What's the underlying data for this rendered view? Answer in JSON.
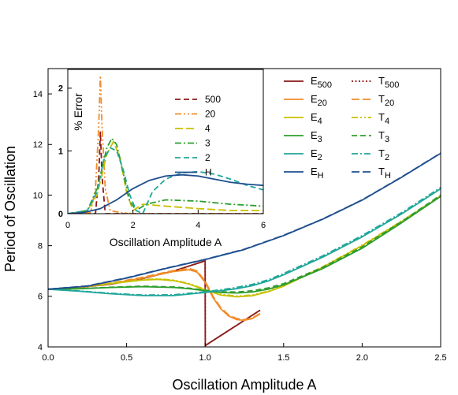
{
  "chart_data": [
    {
      "id": "main",
      "type": "line",
      "title": "",
      "xlabel": "Oscillation Amplitude A",
      "ylabel": "Period of Oscillation",
      "xlim": [
        0,
        2.5
      ],
      "ylim": [
        4,
        15
      ],
      "xticks": [
        "0.0",
        "0.5",
        "1.0",
        "1.5",
        "2.0",
        "2.5"
      ],
      "xtick_values": [
        0,
        0.5,
        1.0,
        1.5,
        2.0,
        2.5
      ],
      "yticks": [
        "4",
        "6",
        "8",
        "10",
        "12",
        "14"
      ],
      "ytick_values": [
        4,
        6,
        8,
        10,
        12,
        14
      ],
      "grid": false,
      "legend": {
        "placement": "top-right",
        "columns": 2
      },
      "series": [
        {
          "name": "E500",
          "label_base": "E",
          "label_sub": "500",
          "legend_col": 0,
          "legend_row": 0,
          "color": "#8b1a1a",
          "dash": "solid",
          "x": [
            0,
            0.2,
            0.4,
            0.6,
            0.8,
            0.9,
            0.95,
            1.0,
            1.001,
            1.05,
            1.1,
            1.2,
            1.3,
            1.35
          ],
          "y": [
            6.28,
            6.35,
            6.48,
            6.7,
            7.0,
            7.2,
            7.3,
            7.4,
            4.05,
            4.25,
            4.45,
            4.85,
            5.25,
            5.45
          ]
        },
        {
          "name": "T500",
          "label_base": "T",
          "label_sub": "500",
          "legend_col": 1,
          "legend_row": 0,
          "color": "#8b1a1a",
          "dash": "dot",
          "x": [
            0,
            0.2,
            0.4,
            0.6,
            0.8,
            0.9,
            0.95,
            1.0,
            1.001,
            1.05,
            1.1,
            1.2,
            1.3,
            1.35
          ],
          "y": [
            6.28,
            6.35,
            6.48,
            6.7,
            7.0,
            7.2,
            7.3,
            7.4,
            4.05,
            4.25,
            4.45,
            4.85,
            5.25,
            5.45
          ]
        },
        {
          "name": "E20",
          "label_base": "E",
          "label_sub": "20",
          "legend_col": 0,
          "legend_row": 1,
          "color": "#f28c28",
          "dash": "solid",
          "x": [
            0,
            0.2,
            0.4,
            0.6,
            0.8,
            0.9,
            0.95,
            1.0,
            1.05,
            1.1,
            1.15,
            1.2,
            1.25,
            1.3,
            1.35
          ],
          "y": [
            6.28,
            6.35,
            6.5,
            6.72,
            6.98,
            7.05,
            6.95,
            6.55,
            5.95,
            5.5,
            5.22,
            5.08,
            5.05,
            5.12,
            5.3
          ]
        },
        {
          "name": "T20",
          "label_base": "T",
          "label_sub": "20",
          "legend_col": 1,
          "legend_row": 1,
          "color": "#f28c28",
          "dash": "longdash",
          "x": [
            0,
            0.2,
            0.4,
            0.6,
            0.8,
            0.9,
            0.95,
            1.0,
            1.05,
            1.1,
            1.15,
            1.2,
            1.25,
            1.3,
            1.35
          ],
          "y": [
            6.28,
            6.36,
            6.52,
            6.75,
            7.02,
            7.1,
            7.0,
            6.6,
            6.0,
            5.55,
            5.26,
            5.12,
            5.08,
            5.15,
            5.32
          ]
        },
        {
          "name": "E4",
          "label_base": "E",
          "label_sub": "4",
          "legend_col": 0,
          "legend_row": 2,
          "color": "#c8c000",
          "dash": "solid",
          "x": [
            0,
            0.2,
            0.4,
            0.6,
            0.7,
            0.8,
            0.9,
            1.0,
            1.1,
            1.2,
            1.3,
            1.4,
            1.5,
            1.75,
            2.0,
            2.25,
            2.5
          ],
          "y": [
            6.28,
            6.36,
            6.5,
            6.64,
            6.67,
            6.62,
            6.48,
            6.25,
            6.05,
            5.98,
            6.02,
            6.18,
            6.4,
            7.15,
            8.0,
            8.95,
            9.95
          ]
        },
        {
          "name": "T4",
          "label_base": "T",
          "label_sub": "4",
          "legend_col": 1,
          "legend_row": 2,
          "color": "#c8c000",
          "dash": "dashdotdot",
          "x": [
            0,
            0.2,
            0.4,
            0.6,
            0.7,
            0.8,
            0.9,
            1.0,
            1.1,
            1.2,
            1.3,
            1.4,
            1.5,
            1.75,
            2.0,
            2.25,
            2.5
          ],
          "y": [
            6.28,
            6.36,
            6.52,
            6.66,
            6.69,
            6.64,
            6.5,
            6.27,
            6.08,
            6.01,
            6.05,
            6.2,
            6.42,
            7.17,
            8.02,
            8.97,
            9.97
          ]
        },
        {
          "name": "E3",
          "label_base": "E",
          "label_sub": "3",
          "legend_col": 0,
          "legend_row": 3,
          "color": "#2e9e2e",
          "dash": "solid",
          "x": [
            0,
            0.2,
            0.4,
            0.6,
            0.8,
            0.9,
            1.0,
            1.1,
            1.2,
            1.3,
            1.4,
            1.5,
            1.75,
            2.0,
            2.25,
            2.5
          ],
          "y": [
            6.28,
            6.3,
            6.35,
            6.38,
            6.35,
            6.3,
            6.22,
            6.15,
            6.13,
            6.17,
            6.28,
            6.45,
            7.1,
            7.9,
            8.9,
            9.95
          ]
        },
        {
          "name": "T3",
          "label_base": "T",
          "label_sub": "3",
          "legend_col": 1,
          "legend_row": 3,
          "color": "#2e9e2e",
          "dash": "dash",
          "x": [
            0,
            0.2,
            0.4,
            0.6,
            0.8,
            0.9,
            1.0,
            1.1,
            1.2,
            1.3,
            1.4,
            1.5,
            1.75,
            2.0,
            2.25,
            2.5
          ],
          "y": [
            6.28,
            6.3,
            6.36,
            6.4,
            6.37,
            6.32,
            6.24,
            6.18,
            6.17,
            6.22,
            6.33,
            6.5,
            7.15,
            7.95,
            8.95,
            10.0
          ]
        },
        {
          "name": "E2",
          "label_base": "E",
          "label_sub": "2",
          "legend_col": 0,
          "legend_row": 4,
          "color": "#20a69a",
          "dash": "solid",
          "x": [
            0,
            0.2,
            0.4,
            0.6,
            0.8,
            1.0,
            1.1,
            1.2,
            1.3,
            1.4,
            1.5,
            1.75,
            2.0,
            2.25,
            2.5
          ],
          "y": [
            6.28,
            6.2,
            6.1,
            6.03,
            6.03,
            6.15,
            6.22,
            6.3,
            6.42,
            6.6,
            6.85,
            7.55,
            8.35,
            9.25,
            10.25
          ]
        },
        {
          "name": "T2",
          "label_base": "T",
          "label_sub": "2",
          "legend_col": 1,
          "legend_row": 4,
          "color": "#20a69a",
          "dash": "dashdot",
          "x": [
            0,
            0.2,
            0.4,
            0.6,
            0.8,
            1.0,
            1.1,
            1.2,
            1.3,
            1.4,
            1.5,
            1.75,
            2.0,
            2.25,
            2.5
          ],
          "y": [
            6.28,
            6.21,
            6.12,
            6.05,
            6.06,
            6.18,
            6.26,
            6.35,
            6.47,
            6.65,
            6.9,
            7.6,
            8.4,
            9.3,
            10.3
          ]
        },
        {
          "name": "EH",
          "label_base": "E",
          "label_sub": "H",
          "legend_col": 0,
          "legend_row": 5,
          "color": "#1f4f8f",
          "dash": "solid",
          "x": [
            0,
            0.25,
            0.5,
            0.75,
            1.0,
            1.25,
            1.5,
            1.75,
            2.0,
            2.25,
            2.5
          ],
          "y": [
            6.28,
            6.4,
            6.72,
            7.1,
            7.45,
            7.85,
            8.4,
            9.05,
            9.8,
            10.7,
            11.65
          ]
        },
        {
          "name": "TH",
          "label_base": "T",
          "label_sub": "H",
          "legend_col": 1,
          "legend_row": 5,
          "color": "#1f4f8f",
          "dash": "longdash",
          "x": [
            0,
            0.25,
            0.5,
            0.75,
            1.0,
            1.25,
            1.5,
            1.75,
            2.0,
            2.25,
            2.5
          ],
          "y": [
            6.28,
            6.41,
            6.73,
            7.11,
            7.46,
            7.86,
            8.41,
            9.06,
            9.81,
            10.71,
            11.66
          ]
        }
      ]
    },
    {
      "id": "inset",
      "type": "line",
      "title": "",
      "xlabel": "Oscillation Amplitude A",
      "ylabel": "% Error",
      "xlim": [
        0,
        6
      ],
      "ylim": [
        0,
        2.3
      ],
      "xticks": [
        "0",
        "2",
        "4",
        "6"
      ],
      "xtick_values": [
        0,
        2,
        4,
        6
      ],
      "yticks": [
        "0",
        "1",
        "2"
      ],
      "ytick_values": [
        0,
        1,
        2
      ],
      "grid": false,
      "legend": {
        "placement": "top-right",
        "columns": 1
      },
      "series": [
        {
          "name": "500",
          "color": "#8b1a1a",
          "dash": "dash",
          "x": [
            0,
            0.85,
            0.95,
            1.0,
            1.05,
            1.15,
            1.3,
            6
          ],
          "y": [
            0,
            0,
            0.6,
            1.3,
            0.6,
            0,
            0,
            0
          ]
        },
        {
          "name": "20",
          "color": "#f28c28",
          "dash": "dashdotdot",
          "x": [
            0,
            0.7,
            0.85,
            0.95,
            1.0,
            1.05,
            1.15,
            1.3,
            1.6,
            2.0,
            6
          ],
          "y": [
            0,
            0.02,
            0.4,
            1.4,
            2.2,
            1.4,
            0.4,
            0.05,
            0.02,
            0,
            0
          ]
        },
        {
          "name": "4",
          "color": "#c8c000",
          "dash": "longdash",
          "x": [
            0,
            0.6,
            0.9,
            1.2,
            1.4,
            1.6,
            1.8,
            2.0,
            2.3,
            3.0,
            4.0,
            5.0,
            6.0
          ],
          "y": [
            0,
            0.05,
            0.3,
            0.95,
            1.15,
            0.9,
            0.35,
            0.05,
            0.15,
            0.12,
            0.08,
            0.05,
            0.05
          ]
        },
        {
          "name": "3",
          "color": "#2e9e2e",
          "dash": "dashdot",
          "x": [
            0,
            0.6,
            0.9,
            1.2,
            1.35,
            1.5,
            1.7,
            1.9,
            2.1,
            2.4,
            3.0,
            4.0,
            5.0,
            6.0
          ],
          "y": [
            0,
            0.05,
            0.4,
            1.05,
            1.2,
            1.1,
            0.65,
            0.2,
            0.05,
            0.15,
            0.22,
            0.2,
            0.15,
            0.12
          ]
        },
        {
          "name": "2",
          "color": "#20a69a",
          "dash": "dash",
          "x": [
            0,
            0.6,
            0.9,
            1.1,
            1.3,
            1.5,
            1.7,
            1.9,
            2.1,
            2.3,
            2.6,
            3.0,
            3.5,
            4.0,
            4.5,
            5.0,
            5.5,
            6.0
          ],
          "y": [
            0,
            0.05,
            0.35,
            0.85,
            1.05,
            1.0,
            0.7,
            0.3,
            0.05,
            0.0,
            0.35,
            0.55,
            0.65,
            0.67,
            0.63,
            0.55,
            0.45,
            0.38
          ]
        },
        {
          "name": "H",
          "color": "#1f4f8f",
          "dash": "solid",
          "x": [
            0,
            0.5,
            1.0,
            1.5,
            2.0,
            2.5,
            3.0,
            3.5,
            4.0,
            4.5,
            5.0,
            5.5,
            6.0
          ],
          "y": [
            0,
            0.02,
            0.08,
            0.22,
            0.4,
            0.53,
            0.6,
            0.62,
            0.6,
            0.55,
            0.5,
            0.47,
            0.45
          ]
        }
      ]
    }
  ]
}
